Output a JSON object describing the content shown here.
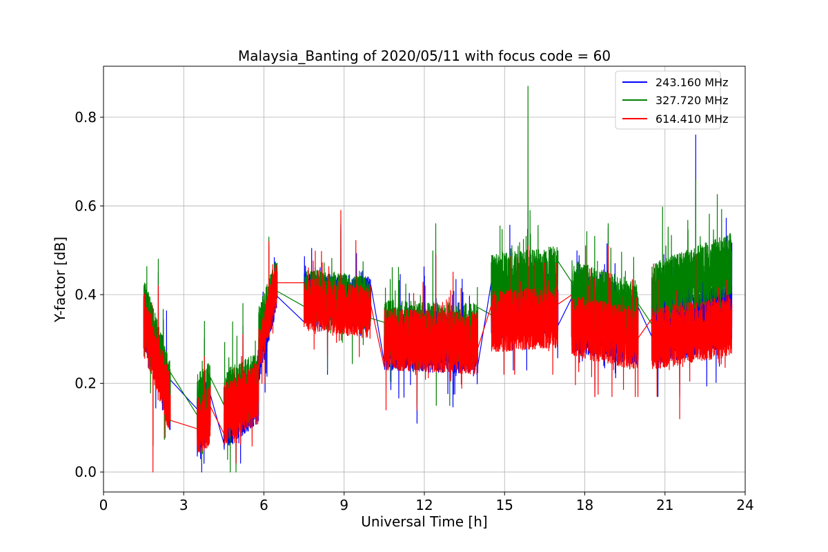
{
  "chart_data": {
    "type": "line",
    "title": "Malaysia_Banting of 2020/05/11 with focus code = 60",
    "xlabel": "Universal Time [h]",
    "ylabel": "Y-factor [dB]",
    "xlim": [
      0,
      24
    ],
    "ylim": [
      -0.045,
      0.915
    ],
    "x_ticks": [
      0,
      3,
      6,
      9,
      12,
      15,
      18,
      21,
      24
    ],
    "y_ticks": [
      0.0,
      0.2,
      0.4,
      0.6,
      0.8
    ],
    "x_tick_labels": [
      "0",
      "3",
      "6",
      "9",
      "12",
      "15",
      "18",
      "21",
      "24"
    ],
    "y_tick_labels": [
      "0.0",
      "0.2",
      "0.4",
      "0.6",
      "0.8"
    ],
    "grid": true,
    "legend_position": "top-right",
    "series": [
      {
        "name": "243.160 MHz",
        "color": "#0000ff",
        "segments": [
          {
            "x_start": 1.5,
            "x_end": 2.5,
            "base_start": 0.36,
            "base_end": 0.16,
            "noise": 0.07,
            "min": 0.06,
            "max": 0.45
          },
          {
            "x_start": 3.5,
            "x_end": 4.0,
            "base_start": 0.11,
            "base_end": 0.15,
            "noise": 0.07,
            "min": 0.0,
            "max": 0.3
          },
          {
            "x_start": 4.5,
            "x_end": 5.8,
            "base_start": 0.12,
            "base_end": 0.18,
            "noise": 0.07,
            "min": 0.02,
            "max": 0.33
          },
          {
            "x_start": 5.8,
            "x_end": 6.5,
            "base_start": 0.25,
            "base_end": 0.42,
            "noise": 0.05,
            "min": 0.18,
            "max": 0.51
          },
          {
            "x_start": 7.5,
            "x_end": 10.0,
            "base_start": 0.39,
            "base_end": 0.38,
            "noise": 0.06,
            "min": 0.22,
            "max": 0.56
          },
          {
            "x_start": 10.5,
            "x_end": 14.0,
            "base_start": 0.3,
            "base_end": 0.29,
            "noise": 0.07,
            "min": 0.11,
            "max": 0.49
          },
          {
            "x_start": 14.5,
            "x_end": 17.0,
            "base_start": 0.37,
            "base_end": 0.38,
            "noise": 0.07,
            "min": 0.23,
            "max": 0.59
          },
          {
            "x_start": 17.5,
            "x_end": 20.0,
            "base_start": 0.35,
            "base_end": 0.32,
            "noise": 0.08,
            "min": 0.17,
            "max": 0.55
          },
          {
            "x_start": 20.5,
            "x_end": 23.5,
            "base_start": 0.32,
            "base_end": 0.36,
            "noise": 0.08,
            "min": 0.17,
            "max": 0.76
          }
        ]
      },
      {
        "name": "327.720 MHz",
        "color": "#008000",
        "segments": [
          {
            "x_start": 1.5,
            "x_end": 2.5,
            "base_start": 0.37,
            "base_end": 0.18,
            "noise": 0.07,
            "min": 0.06,
            "max": 0.48
          },
          {
            "x_start": 3.5,
            "x_end": 4.0,
            "base_start": 0.15,
            "base_end": 0.18,
            "noise": 0.07,
            "min": 0.02,
            "max": 0.34
          },
          {
            "x_start": 4.5,
            "x_end": 5.8,
            "base_start": 0.16,
            "base_end": 0.2,
            "noise": 0.07,
            "min": 0.0,
            "max": 0.38
          },
          {
            "x_start": 5.8,
            "x_end": 6.5,
            "base_start": 0.32,
            "base_end": 0.44,
            "noise": 0.05,
            "min": 0.25,
            "max": 0.53
          },
          {
            "x_start": 7.5,
            "x_end": 10.0,
            "base_start": 0.4,
            "base_end": 0.38,
            "noise": 0.06,
            "min": 0.23,
            "max": 0.55
          },
          {
            "x_start": 10.5,
            "x_end": 14.0,
            "base_start": 0.32,
            "base_end": 0.31,
            "noise": 0.07,
            "min": 0.15,
            "max": 0.56
          },
          {
            "x_start": 14.5,
            "x_end": 17.0,
            "base_start": 0.42,
            "base_end": 0.44,
            "noise": 0.07,
            "min": 0.24,
            "max": 0.87
          },
          {
            "x_start": 17.5,
            "x_end": 20.0,
            "base_start": 0.41,
            "base_end": 0.36,
            "noise": 0.07,
            "min": 0.19,
            "max": 0.56
          },
          {
            "x_start": 20.5,
            "x_end": 23.5,
            "base_start": 0.4,
            "base_end": 0.47,
            "noise": 0.07,
            "min": 0.2,
            "max": 0.66
          }
        ]
      },
      {
        "name": "614.410 MHz",
        "color": "#ff0000",
        "segments": [
          {
            "x_start": 1.5,
            "x_end": 2.5,
            "base_start": 0.34,
            "base_end": 0.15,
            "noise": 0.07,
            "min": 0.0,
            "max": 0.42
          },
          {
            "x_start": 3.5,
            "x_end": 4.0,
            "base_start": 0.1,
            "base_end": 0.13,
            "noise": 0.07,
            "min": 0.02,
            "max": 0.26
          },
          {
            "x_start": 4.5,
            "x_end": 5.8,
            "base_start": 0.13,
            "base_end": 0.18,
            "noise": 0.07,
            "min": 0.02,
            "max": 0.31
          },
          {
            "x_start": 5.8,
            "x_end": 6.5,
            "base_start": 0.27,
            "base_end": 0.43,
            "noise": 0.05,
            "min": 0.2,
            "max": 0.52
          },
          {
            "x_start": 7.5,
            "x_end": 10.0,
            "base_start": 0.38,
            "base_end": 0.36,
            "noise": 0.06,
            "min": 0.26,
            "max": 0.59
          },
          {
            "x_start": 10.5,
            "x_end": 14.0,
            "base_start": 0.3,
            "base_end": 0.29,
            "noise": 0.07,
            "min": 0.14,
            "max": 0.49
          },
          {
            "x_start": 14.5,
            "x_end": 17.0,
            "base_start": 0.34,
            "base_end": 0.35,
            "noise": 0.07,
            "min": 0.22,
            "max": 0.51
          },
          {
            "x_start": 17.5,
            "x_end": 20.0,
            "base_start": 0.33,
            "base_end": 0.3,
            "noise": 0.07,
            "min": 0.17,
            "max": 0.51
          },
          {
            "x_start": 20.5,
            "x_end": 23.5,
            "base_start": 0.3,
            "base_end": 0.33,
            "noise": 0.07,
            "min": 0.12,
            "max": 0.49
          }
        ]
      }
    ]
  }
}
